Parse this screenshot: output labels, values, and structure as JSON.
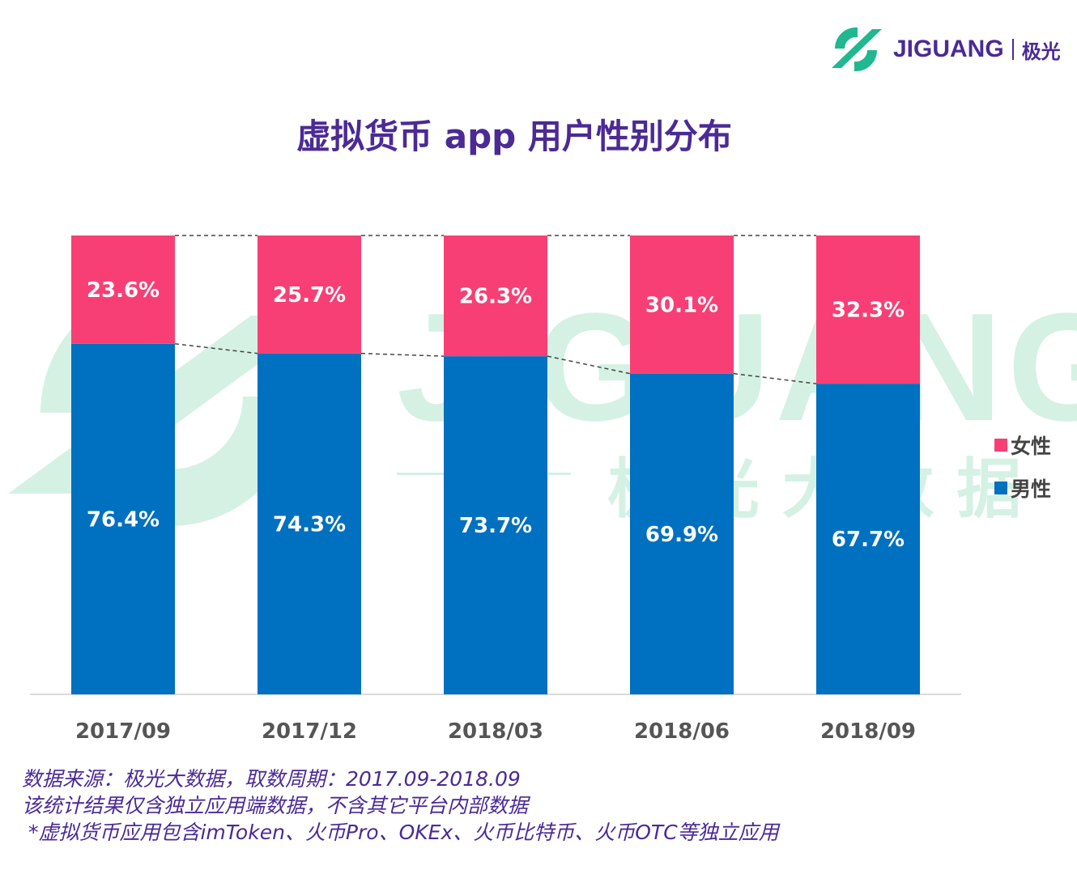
{
  "logo": {
    "text": "JIGUANG",
    "cn": "极光"
  },
  "watermark": {
    "text": "JIGUANG",
    "cn": "极 光 大 数 据"
  },
  "chart_data": {
    "type": "bar",
    "stacked": true,
    "title": "虚拟货币 app 用户性别分布",
    "categories": [
      "2017/09",
      "2017/12",
      "2018/03",
      "2018/06",
      "2018/09"
    ],
    "series": [
      {
        "name": "男性",
        "values": [
          76.4,
          74.3,
          73.7,
          69.9,
          67.7
        ],
        "color": "#0070c0"
      },
      {
        "name": "女性",
        "values": [
          23.6,
          25.7,
          26.3,
          30.1,
          32.3
        ],
        "color": "#f83f75"
      }
    ],
    "ylim": [
      0,
      100
    ],
    "unit": "%",
    "grid": false,
    "legend": "right"
  },
  "footnotes": [
    "数据来源：极光大数据，取数周期：2017.09-2018.09",
    "该统计结果仅含独立应用端数据，不含其它平台内部数据",
    " *虚拟货币应用包含imToken、火币Pro、OKEx、火币比特币、火币OTC等独立应用"
  ]
}
